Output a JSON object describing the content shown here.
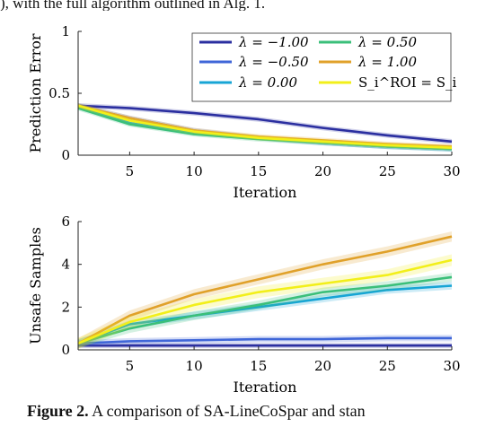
{
  "top_text": "), with the full algorithm outlined in Alg. 1.",
  "caption": {
    "label": "Figure 2.",
    "text": " A comparison of SA-LineCoSpar and stan"
  },
  "chart_data": [
    {
      "type": "line",
      "xlabel": "Iteration",
      "ylabel": "Prediction Error",
      "xlim": [
        1,
        30
      ],
      "ylim": [
        0,
        1
      ],
      "xticks": [
        5,
        10,
        15,
        20,
        25,
        30
      ],
      "yticks": [
        0,
        0.5,
        1
      ],
      "ytick_labels": [
        "0",
        "0.5",
        "1"
      ],
      "legend_position": "top-right",
      "x": [
        1,
        5,
        10,
        15,
        20,
        25,
        30
      ],
      "series": [
        {
          "name": "λ = −1.00",
          "color": "#2b2fa0",
          "values": [
            0.4,
            0.38,
            0.34,
            0.29,
            0.22,
            0.16,
            0.11
          ]
        },
        {
          "name": "λ = −0.50",
          "color": "#3f66d8",
          "values": [
            0.4,
            0.3,
            0.2,
            0.14,
            0.1,
            0.07,
            0.05
          ]
        },
        {
          "name": "λ = 0.00",
          "color": "#17a5d5",
          "values": [
            0.39,
            0.26,
            0.18,
            0.14,
            0.1,
            0.07,
            0.05
          ]
        },
        {
          "name": "λ = 0.50",
          "color": "#3bbf7a",
          "values": [
            0.38,
            0.25,
            0.17,
            0.13,
            0.1,
            0.07,
            0.05
          ]
        },
        {
          "name": "λ = 1.00",
          "color": "#e0a12a",
          "values": [
            0.4,
            0.3,
            0.2,
            0.15,
            0.12,
            0.09,
            0.07
          ]
        },
        {
          "name": "S_i^ROI = S_i",
          "color": "#f2ef1a",
          "values": [
            0.4,
            0.28,
            0.19,
            0.14,
            0.11,
            0.08,
            0.06
          ]
        }
      ]
    },
    {
      "type": "line",
      "xlabel": "Iteration",
      "ylabel": "Unsafe Samples",
      "xlim": [
        1,
        30
      ],
      "ylim": [
        0,
        6
      ],
      "xticks": [
        5,
        10,
        15,
        20,
        25,
        30
      ],
      "yticks": [
        0,
        2,
        4,
        6
      ],
      "ytick_labels": [
        "0",
        "2",
        "4",
        "6"
      ],
      "x": [
        1,
        5,
        10,
        15,
        20,
        25,
        30
      ],
      "series": [
        {
          "name": "λ = −1.00",
          "color": "#2b2fa0",
          "values": [
            0.2,
            0.2,
            0.2,
            0.2,
            0.2,
            0.2,
            0.2
          ]
        },
        {
          "name": "λ = −0.50",
          "color": "#3f66d8",
          "values": [
            0.3,
            0.4,
            0.45,
            0.5,
            0.5,
            0.55,
            0.55
          ]
        },
        {
          "name": "λ = 0.00",
          "color": "#17a5d5",
          "values": [
            0.3,
            1.2,
            1.6,
            2.0,
            2.4,
            2.8,
            3.0
          ]
        },
        {
          "name": "λ = 0.50",
          "color": "#3bbf7a",
          "values": [
            0.3,
            1.0,
            1.6,
            2.1,
            2.7,
            3.0,
            3.4
          ]
        },
        {
          "name": "λ = 1.00",
          "color": "#e0a12a",
          "values": [
            0.3,
            1.6,
            2.6,
            3.3,
            4.0,
            4.6,
            5.3
          ]
        },
        {
          "name": "S_i^ROI = S_i",
          "color": "#f2ef1a",
          "values": [
            0.3,
            1.3,
            2.1,
            2.7,
            3.1,
            3.5,
            4.2
          ]
        }
      ]
    }
  ]
}
